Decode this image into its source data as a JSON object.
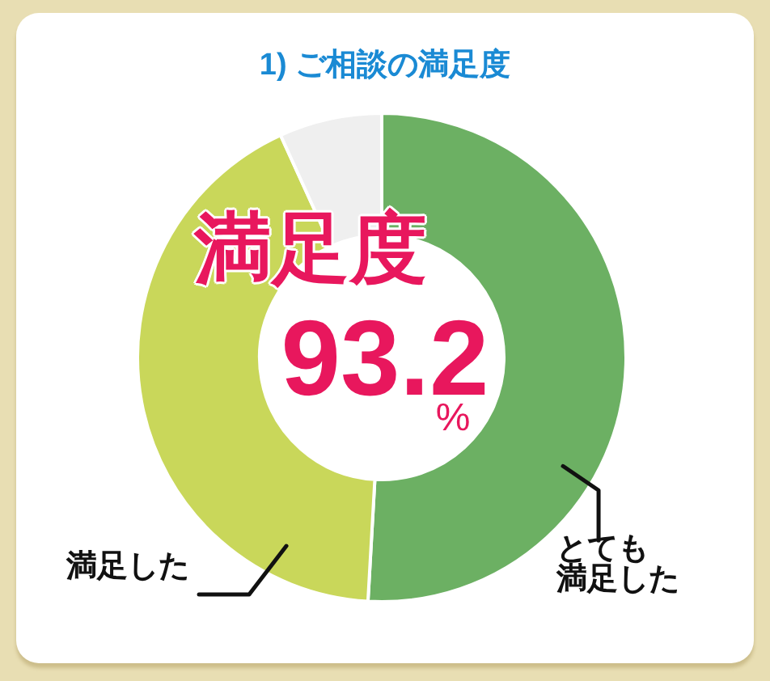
{
  "chart_data": {
    "type": "donut",
    "title": "1) ご相談の満足度",
    "categories": [
      "とても満足した",
      "満足した",
      null
    ],
    "values": [
      50.9,
      42.3,
      6.8
    ],
    "colors": [
      "#6cb063",
      "#c9d75a",
      "#efefef"
    ],
    "annotations": [
      "満足度",
      "93.2",
      "%"
    ]
  }
}
